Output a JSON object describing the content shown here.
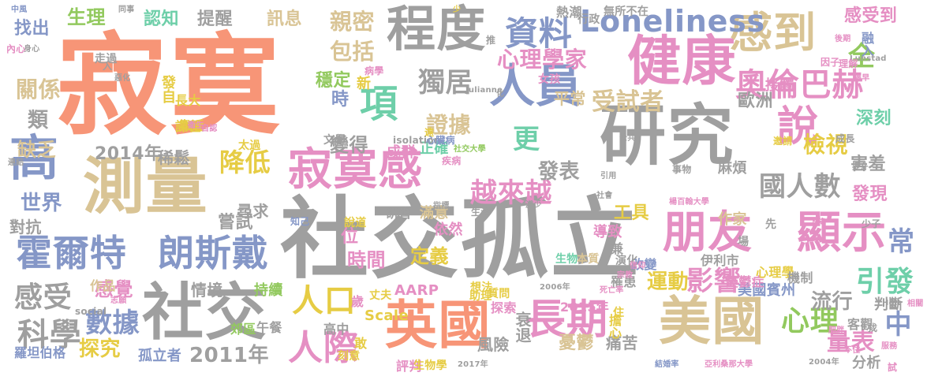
{
  "palette": {
    "orange": "#f79577",
    "gray": "#9f9f9f",
    "blue": "#8597c7",
    "pink": "#e58fc3",
    "tan": "#d9c495",
    "teal": "#6ecfa9",
    "green": "#92c95e",
    "yellow": "#e6cc44"
  },
  "words": [
    {
      "t": "寂寞",
      "c": "orange"
    },
    {
      "t": "社交孤立",
      "c": "gray"
    },
    {
      "t": "研究",
      "c": "gray"
    },
    {
      "t": "寂寞感",
      "c": "pink"
    },
    {
      "t": "測量",
      "c": "tan"
    },
    {
      "t": "健康",
      "c": "pink"
    },
    {
      "t": "程度",
      "c": "gray"
    },
    {
      "t": "英國",
      "c": "orange"
    },
    {
      "t": "美國",
      "c": "tan"
    },
    {
      "t": "社交",
      "c": "gray"
    },
    {
      "t": "朋友",
      "c": "pink"
    },
    {
      "t": "顯示",
      "c": "pink"
    },
    {
      "t": "長期",
      "c": "pink"
    },
    {
      "t": "人員",
      "c": "blue"
    },
    {
      "t": "感到",
      "c": "tan"
    },
    {
      "t": "高",
      "c": "blue"
    },
    {
      "t": "說",
      "c": "pink"
    },
    {
      "t": "霍爾特",
      "c": "blue"
    },
    {
      "t": "朗斯戴",
      "c": "blue"
    },
    {
      "t": "Loneliness",
      "c": "blue"
    },
    {
      "t": "資料",
      "c": "blue"
    },
    {
      "t": "奧倫巴赫",
      "c": "pink"
    },
    {
      "t": "人際",
      "c": "pink"
    },
    {
      "t": "人口",
      "c": "yellow"
    },
    {
      "t": "項",
      "c": "teal"
    },
    {
      "t": "心理",
      "c": "green"
    },
    {
      "t": "影響",
      "c": "pink"
    },
    {
      "t": "國人數",
      "c": "gray"
    },
    {
      "t": "越來越",
      "c": "pink"
    },
    {
      "t": "科學",
      "c": "gray"
    },
    {
      "t": "數據",
      "c": "blue"
    },
    {
      "t": "感受",
      "c": "gray"
    },
    {
      "t": "2014年",
      "c": "gray"
    },
    {
      "t": "2011年",
      "c": "gray"
    },
    {
      "t": "降低",
      "c": "yellow"
    },
    {
      "t": "獨居",
      "c": "gray"
    },
    {
      "t": "受試者",
      "c": "tan"
    },
    {
      "t": "全",
      "c": "green"
    },
    {
      "t": "檢視",
      "c": "yellow"
    },
    {
      "t": "量表",
      "c": "pink"
    },
    {
      "t": "引發",
      "c": "teal"
    },
    {
      "t": "運動",
      "c": "yellow"
    },
    {
      "t": "流行",
      "c": "gray"
    },
    {
      "t": "中",
      "c": "blue"
    },
    {
      "t": "常",
      "c": "blue"
    },
    {
      "t": "更",
      "c": "teal"
    },
    {
      "t": "發表",
      "c": "gray"
    },
    {
      "t": "證據",
      "c": "tan"
    },
    {
      "t": "包括",
      "c": "tan"
    },
    {
      "t": "親密",
      "c": "tan"
    },
    {
      "t": "心理學家",
      "c": "pink"
    },
    {
      "t": "時間",
      "c": "pink"
    },
    {
      "t": "定義",
      "c": "yellow"
    },
    {
      "t": "世界",
      "c": "blue"
    },
    {
      "t": "探究",
      "c": "yellow"
    },
    {
      "t": "關係",
      "c": "tan"
    },
    {
      "t": "類",
      "c": "gray"
    },
    {
      "t": "缺乏",
      "c": "tan"
    },
    {
      "t": "找出",
      "c": "blue"
    },
    {
      "t": "生理",
      "c": "green"
    },
    {
      "t": "認知",
      "c": "teal"
    },
    {
      "t": "提醒",
      "c": "gray"
    },
    {
      "t": "訊息",
      "c": "tan"
    },
    {
      "t": "穩定",
      "c": "green"
    },
    {
      "t": "時",
      "c": "blue"
    },
    {
      "t": "歐洲",
      "c": "gray"
    },
    {
      "t": "深刻",
      "c": "teal"
    },
    {
      "t": "害羞",
      "c": "gray"
    },
    {
      "t": "發現",
      "c": "pink"
    },
    {
      "t": "感受到",
      "c": "pink"
    },
    {
      "t": "融入",
      "c": "blue"
    },
    {
      "t": "接觸",
      "c": "pink"
    },
    {
      "t": "尋求",
      "c": "gray"
    },
    {
      "t": "嘗試",
      "c": "gray"
    },
    {
      "t": "情境",
      "c": "gray"
    },
    {
      "t": "持續",
      "c": "green"
    },
    {
      "t": "對抗",
      "c": "gray"
    },
    {
      "t": "羅坦伯格",
      "c": "blue"
    },
    {
      "t": "孤立者",
      "c": "blue"
    },
    {
      "t": "風險",
      "c": "gray"
    },
    {
      "t": "憂鬱",
      "c": "tan"
    },
    {
      "t": "痛苦",
      "c": "gray"
    },
    {
      "t": "分析",
      "c": "gray"
    },
    {
      "t": "客觀",
      "c": "gray"
    },
    {
      "t": "判斷",
      "c": "gray"
    },
    {
      "t": "變得",
      "c": "gray"
    },
    {
      "t": "AARP",
      "c": "pink"
    },
    {
      "t": "Scale",
      "c": "yellow"
    },
    {
      "t": "工具",
      "c": "yellow"
    },
    {
      "t": "導致",
      "c": "pink"
    },
    {
      "t": "成群",
      "c": "pink"
    },
    {
      "t": "正確",
      "c": "teal"
    },
    {
      "t": "滿意",
      "c": "tan"
    },
    {
      "t": "依然",
      "c": "pink"
    },
    {
      "t": "稀鬆",
      "c": "gray"
    },
    {
      "t": "感覺",
      "c": "pink"
    },
    {
      "t": "位",
      "c": "pink"
    },
    {
      "t": "新",
      "c": "yellow"
    },
    {
      "t": "麻煩",
      "c": "gray"
    },
    {
      "t": "作家",
      "c": "tan"
    },
    {
      "t": "作品",
      "c": "tan"
    },
    {
      "t": "美國賓州",
      "c": "blue"
    },
    {
      "t": "2015年",
      "c": "pink"
    },
    {
      "t": "擔心",
      "c": "yellow"
    },
    {
      "t": "改變",
      "c": "blue"
    },
    {
      "t": "伊利市",
      "c": "gray"
    },
    {
      "t": "憂鬱症",
      "c": "pink"
    },
    {
      "t": "心理學",
      "c": "yellow"
    },
    {
      "t": "機制",
      "c": "gray"
    },
    {
      "t": "衰退",
      "c": "gray"
    },
    {
      "t": "行政",
      "c": "gray"
    },
    {
      "t": "平常",
      "c": "tan"
    },
    {
      "t": "熱潮",
      "c": "gray"
    },
    {
      "t": "無所不在",
      "c": "gray"
    },
    {
      "t": "發自",
      "c": "yellow"
    },
    {
      "t": "長大",
      "c": "yellow"
    },
    {
      "t": "靠近",
      "c": "yellow"
    },
    {
      "t": "課程",
      "c": "yellow"
    },
    {
      "t": "太過",
      "c": "yellow"
    },
    {
      "t": "研習",
      "c": "gray"
    },
    {
      "t": "說道",
      "c": "yellow"
    },
    {
      "t": "知己",
      "c": "blue"
    },
    {
      "t": "午餐",
      "c": "gray"
    },
    {
      "t": "郊區",
      "c": "green"
    },
    {
      "t": "高中",
      "c": "gray"
    },
    {
      "t": "刻意",
      "c": "yellow"
    },
    {
      "t": "評判",
      "c": "pink"
    },
    {
      "t": "生物學",
      "c": "yellow"
    },
    {
      "t": "2017年",
      "c": "gray"
    },
    {
      "t": "結婚率",
      "c": "blue"
    },
    {
      "t": "亞利桑那大學",
      "c": "pink"
    },
    {
      "t": "2004年",
      "c": "gray"
    },
    {
      "t": "探索",
      "c": "pink"
    },
    {
      "t": "助理",
      "c": "yellow"
    },
    {
      "t": "質問",
      "c": "yellow"
    },
    {
      "t": "想法",
      "c": "yellow"
    },
    {
      "t": "丈夫",
      "c": "yellow"
    },
    {
      "t": "歲",
      "c": "pink"
    },
    {
      "t": "敢",
      "c": "yellow"
    },
    {
      "t": "生物",
      "c": "teal"
    },
    {
      "t": "本質",
      "c": "tan"
    },
    {
      "t": "兼",
      "c": "gray"
    },
    {
      "t": "演化",
      "c": "gray"
    },
    {
      "t": "罹患",
      "c": "gray"
    },
    {
      "t": "先",
      "c": "gray"
    },
    {
      "t": "場",
      "c": "gray"
    },
    {
      "t": "下降",
      "c": "pink"
    },
    {
      "t": "少子",
      "c": "gray"
    },
    {
      "t": "中風",
      "c": "blue"
    },
    {
      "t": "同事",
      "c": "gray"
    },
    {
      "t": "內心",
      "c": "pink"
    },
    {
      "t": "身心",
      "c": "gray"
    },
    {
      "t": "走過",
      "c": "gray"
    },
    {
      "t": "入",
      "c": "gray"
    },
    {
      "t": "惡化",
      "c": "gray"
    },
    {
      "t": "病學",
      "c": "pink"
    },
    {
      "t": "女孩",
      "c": "pink"
    },
    {
      "t": "推",
      "c": "gray"
    },
    {
      "t": "Julianne",
      "c": "gray"
    },
    {
      "t": "遠",
      "c": "yellow"
    },
    {
      "t": "isolation",
      "c": "gray"
    },
    {
      "t": "心臟病",
      "c": "blue"
    },
    {
      "t": "疾病",
      "c": "pink"
    },
    {
      "t": "社交大學",
      "c": "green"
    },
    {
      "t": "公共",
      "c": "gray"
    },
    {
      "t": "文學",
      "c": "gray"
    },
    {
      "t": "事物",
      "c": "gray"
    },
    {
      "t": "社會",
      "c": "gray"
    },
    {
      "t": "楊百翰大學",
      "c": "pink"
    },
    {
      "t": "成長",
      "c": "gray"
    },
    {
      "t": "邀請",
      "c": "yellow"
    },
    {
      "t": "Lunstad",
      "c": "gray"
    },
    {
      "t": "因子",
      "c": "pink"
    },
    {
      "t": "理解",
      "c": "pink"
    },
    {
      "t": "後期",
      "c": "pink"
    },
    {
      "t": "死亡率",
      "c": "pink"
    },
    {
      "t": "宗教",
      "c": "pink"
    },
    {
      "t": "信仰",
      "c": "pink"
    },
    {
      "t": "2006年",
      "c": "gray"
    },
    {
      "t": "Holt",
      "c": "gray"
    },
    {
      "t": "相關",
      "c": "pink"
    },
    {
      "t": "服務",
      "c": "pink"
    },
    {
      "t": "不住",
      "c": "pink"
    },
    {
      "t": "肥胖",
      "c": "pink"
    },
    {
      "t": "試",
      "c": "pink"
    },
    {
      "t": "找",
      "c": "gray"
    },
    {
      "t": "志願",
      "c": "pink"
    },
    {
      "t": "social",
      "c": "gray"
    },
    {
      "t": "衛生",
      "c": "pink"
    },
    {
      "t": "連結",
      "c": "gray"
    },
    {
      "t": "自認",
      "c": "pink"
    },
    {
      "t": "少",
      "c": "yellow"
    },
    {
      "t": "生活",
      "c": "gray"
    },
    {
      "t": "指標",
      "c": "gray"
    },
    {
      "t": "引用",
      "c": "gray"
    },
    {
      "t": "減少",
      "c": "gray"
    },
    {
      "t": "提升",
      "c": "gray"
    },
    {
      "t": "過早",
      "c": "pink"
    },
    {
      "t": "化",
      "c": "gray"
    },
    {
      "t": "住",
      "c": "yellow"
    }
  ]
}
